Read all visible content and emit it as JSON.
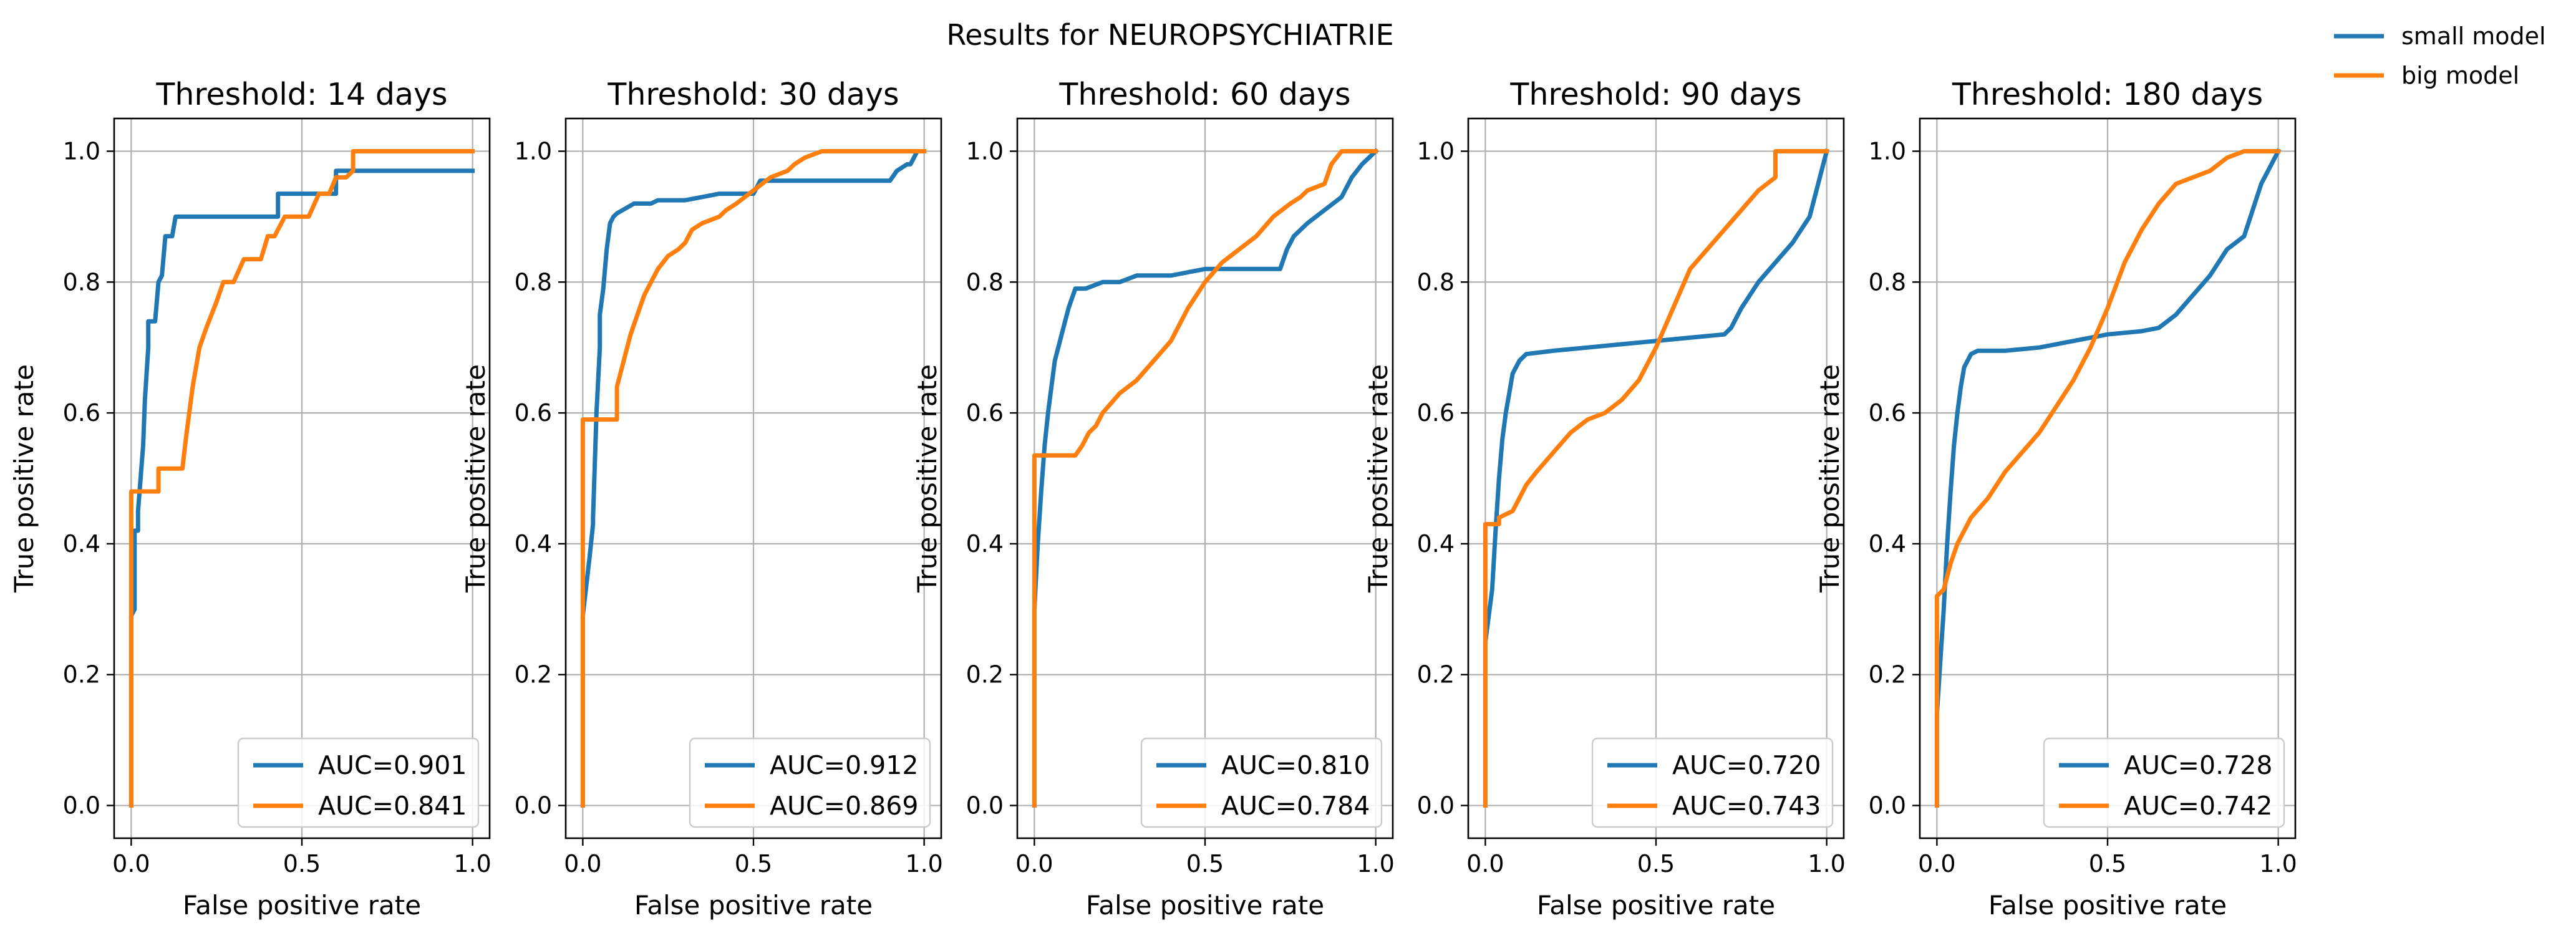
{
  "chart_data": {
    "type": "line",
    "title": "Results for NEUROPSYCHIATRIE",
    "figure_legend": {
      "placement": "top-right",
      "entries": [
        {
          "name": "small model",
          "color": "#1f77b4"
        },
        {
          "name": "big model",
          "color": "#ff7f0e"
        }
      ]
    },
    "grid": true,
    "xlabel": "False positive rate",
    "ylabel": "True positive rate",
    "xlim": [
      -0.05,
      1.05
    ],
    "ylim": [
      -0.05,
      1.05
    ],
    "xticks": [
      0.0,
      0.5,
      1.0
    ],
    "xtick_labels": [
      "0.0",
      "0.5",
      "1.0"
    ],
    "yticks": [
      0.0,
      0.2,
      0.4,
      0.6,
      0.8,
      1.0
    ],
    "ytick_labels": [
      "0.0",
      "0.2",
      "0.4",
      "0.6",
      "0.8",
      "1.0"
    ],
    "panels": [
      {
        "title": "Threshold: 14 days",
        "legend_placement": "lower right",
        "series": [
          {
            "model": "small model",
            "label": "AUC=0.901",
            "color": "#1f77b4",
            "x": [
              0,
              0,
              0.01,
              0.01,
              0.02,
              0.02,
              0.035,
              0.04,
              0.05,
              0.05,
              0.07,
              0.08,
              0.09,
              0.1,
              0.12,
              0.13,
              0.15,
              0.43,
              0.43,
              0.55,
              0.6,
              0.6,
              1.0
            ],
            "y": [
              0,
              0.29,
              0.3,
              0.42,
              0.42,
              0.45,
              0.55,
              0.62,
              0.7,
              0.74,
              0.74,
              0.8,
              0.81,
              0.87,
              0.87,
              0.9,
              0.9,
              0.9,
              0.935,
              0.935,
              0.935,
              0.97,
              0.97
            ]
          },
          {
            "model": "big model",
            "label": "AUC=0.841",
            "color": "#ff7f0e",
            "x": [
              0,
              0,
              0.08,
              0.08,
              0.15,
              0.16,
              0.18,
              0.2,
              0.22,
              0.25,
              0.27,
              0.3,
              0.33,
              0.38,
              0.4,
              0.42,
              0.45,
              0.52,
              0.55,
              0.58,
              0.6,
              0.63,
              0.65,
              0.65,
              1.0
            ],
            "y": [
              0,
              0.48,
              0.48,
              0.515,
              0.515,
              0.56,
              0.64,
              0.7,
              0.73,
              0.77,
              0.8,
              0.8,
              0.835,
              0.835,
              0.87,
              0.87,
              0.9,
              0.9,
              0.935,
              0.935,
              0.96,
              0.96,
              0.97,
              1.0,
              1.0
            ]
          }
        ]
      },
      {
        "title": "Threshold: 30 days",
        "legend_placement": "lower right",
        "series": [
          {
            "model": "small model",
            "label": "AUC=0.912",
            "color": "#1f77b4",
            "x": [
              0,
              0,
              0.02,
              0.03,
              0.03,
              0.04,
              0.05,
              0.05,
              0.06,
              0.07,
              0.08,
              0.09,
              0.1,
              0.15,
              0.2,
              0.22,
              0.3,
              0.4,
              0.5,
              0.52,
              0.6,
              0.7,
              0.8,
              0.9,
              0.92,
              0.95,
              0.96,
              0.98,
              1.0
            ],
            "y": [
              0,
              0.29,
              0.38,
              0.43,
              0.44,
              0.6,
              0.7,
              0.75,
              0.79,
              0.85,
              0.89,
              0.9,
              0.905,
              0.92,
              0.92,
              0.925,
              0.925,
              0.935,
              0.935,
              0.955,
              0.955,
              0.955,
              0.955,
              0.955,
              0.97,
              0.98,
              0.98,
              1.0,
              1.0
            ]
          },
          {
            "model": "big model",
            "label": "AUC=0.869",
            "color": "#ff7f0e",
            "x": [
              0,
              0,
              0.1,
              0.1,
              0.12,
              0.14,
              0.16,
              0.18,
              0.2,
              0.22,
              0.25,
              0.28,
              0.3,
              0.32,
              0.35,
              0.4,
              0.42,
              0.45,
              0.5,
              0.55,
              0.6,
              0.62,
              0.65,
              0.7,
              1.0
            ],
            "y": [
              0,
              0.59,
              0.59,
              0.64,
              0.68,
              0.72,
              0.75,
              0.78,
              0.8,
              0.82,
              0.84,
              0.85,
              0.86,
              0.88,
              0.89,
              0.9,
              0.91,
              0.92,
              0.94,
              0.96,
              0.97,
              0.98,
              0.99,
              1.0,
              1.0
            ]
          }
        ]
      },
      {
        "title": "Threshold: 60 days",
        "legend_placement": "lower right",
        "series": [
          {
            "model": "small model",
            "label": "AUC=0.810",
            "color": "#1f77b4",
            "x": [
              0,
              0,
              0.01,
              0.02,
              0.03,
              0.04,
              0.05,
              0.06,
              0.08,
              0.1,
              0.12,
              0.15,
              0.2,
              0.25,
              0.3,
              0.4,
              0.5,
              0.55,
              0.6,
              0.65,
              0.7,
              0.72,
              0.74,
              0.76,
              0.8,
              0.85,
              0.9,
              0.93,
              0.96,
              1.0
            ],
            "y": [
              0,
              0.3,
              0.4,
              0.48,
              0.55,
              0.6,
              0.64,
              0.68,
              0.72,
              0.76,
              0.79,
              0.79,
              0.8,
              0.8,
              0.81,
              0.81,
              0.82,
              0.82,
              0.82,
              0.82,
              0.82,
              0.82,
              0.85,
              0.87,
              0.89,
              0.91,
              0.93,
              0.96,
              0.98,
              1.0
            ]
          },
          {
            "model": "big model",
            "label": "AUC=0.784",
            "color": "#ff7f0e",
            "x": [
              0,
              0,
              0.12,
              0.14,
              0.16,
              0.18,
              0.2,
              0.25,
              0.3,
              0.35,
              0.4,
              0.45,
              0.5,
              0.55,
              0.6,
              0.65,
              0.7,
              0.75,
              0.78,
              0.8,
              0.85,
              0.87,
              0.9,
              1.0
            ],
            "y": [
              0,
              0.535,
              0.535,
              0.55,
              0.57,
              0.58,
              0.6,
              0.63,
              0.65,
              0.68,
              0.71,
              0.76,
              0.8,
              0.83,
              0.85,
              0.87,
              0.9,
              0.92,
              0.93,
              0.94,
              0.95,
              0.98,
              1.0,
              1.0
            ]
          }
        ]
      },
      {
        "title": "Threshold: 90 days",
        "legend_placement": "lower right",
        "series": [
          {
            "model": "small model",
            "label": "AUC=0.720",
            "color": "#1f77b4",
            "x": [
              0,
              0,
              0.02,
              0.03,
              0.04,
              0.05,
              0.06,
              0.07,
              0.08,
              0.1,
              0.12,
              0.2,
              0.3,
              0.4,
              0.5,
              0.6,
              0.7,
              0.72,
              0.75,
              0.8,
              0.85,
              0.9,
              0.95,
              0.98,
              1.0
            ],
            "y": [
              0,
              0.25,
              0.33,
              0.42,
              0.5,
              0.56,
              0.6,
              0.63,
              0.66,
              0.68,
              0.69,
              0.695,
              0.7,
              0.705,
              0.71,
              0.715,
              0.72,
              0.73,
              0.76,
              0.8,
              0.83,
              0.86,
              0.9,
              0.96,
              1.0
            ]
          },
          {
            "model": "big model",
            "label": "AUC=0.743",
            "color": "#ff7f0e",
            "x": [
              0,
              0,
              0.04,
              0.04,
              0.08,
              0.1,
              0.12,
              0.15,
              0.2,
              0.25,
              0.3,
              0.35,
              0.4,
              0.45,
              0.5,
              0.55,
              0.6,
              0.65,
              0.7,
              0.75,
              0.8,
              0.85,
              0.85,
              1.0
            ],
            "y": [
              0,
              0.43,
              0.43,
              0.44,
              0.45,
              0.47,
              0.49,
              0.51,
              0.54,
              0.57,
              0.59,
              0.6,
              0.62,
              0.65,
              0.7,
              0.76,
              0.82,
              0.85,
              0.88,
              0.91,
              0.94,
              0.96,
              1.0,
              1.0
            ]
          }
        ]
      },
      {
        "title": "Threshold: 180 days",
        "legend_placement": "lower right",
        "series": [
          {
            "model": "small model",
            "label": "AUC=0.728",
            "color": "#1f77b4",
            "x": [
              0,
              0,
              0.01,
              0.02,
              0.03,
              0.04,
              0.05,
              0.06,
              0.07,
              0.08,
              0.1,
              0.12,
              0.2,
              0.3,
              0.4,
              0.5,
              0.6,
              0.65,
              0.7,
              0.75,
              0.8,
              0.85,
              0.9,
              0.95,
              1.0
            ],
            "y": [
              0,
              0.14,
              0.22,
              0.3,
              0.4,
              0.48,
              0.55,
              0.6,
              0.64,
              0.67,
              0.69,
              0.695,
              0.695,
              0.7,
              0.71,
              0.72,
              0.725,
              0.73,
              0.75,
              0.78,
              0.81,
              0.85,
              0.87,
              0.95,
              1.0
            ]
          },
          {
            "model": "big model",
            "label": "AUC=0.742",
            "color": "#ff7f0e",
            "x": [
              0,
              0,
              0.02,
              0.04,
              0.06,
              0.08,
              0.1,
              0.15,
              0.2,
              0.25,
              0.3,
              0.35,
              0.4,
              0.45,
              0.5,
              0.55,
              0.6,
              0.65,
              0.7,
              0.75,
              0.8,
              0.85,
              0.9,
              1.0
            ],
            "y": [
              0,
              0.32,
              0.33,
              0.37,
              0.4,
              0.42,
              0.44,
              0.47,
              0.51,
              0.54,
              0.57,
              0.61,
              0.65,
              0.7,
              0.76,
              0.83,
              0.88,
              0.92,
              0.95,
              0.96,
              0.97,
              0.99,
              1.0,
              1.0
            ]
          }
        ]
      }
    ]
  }
}
